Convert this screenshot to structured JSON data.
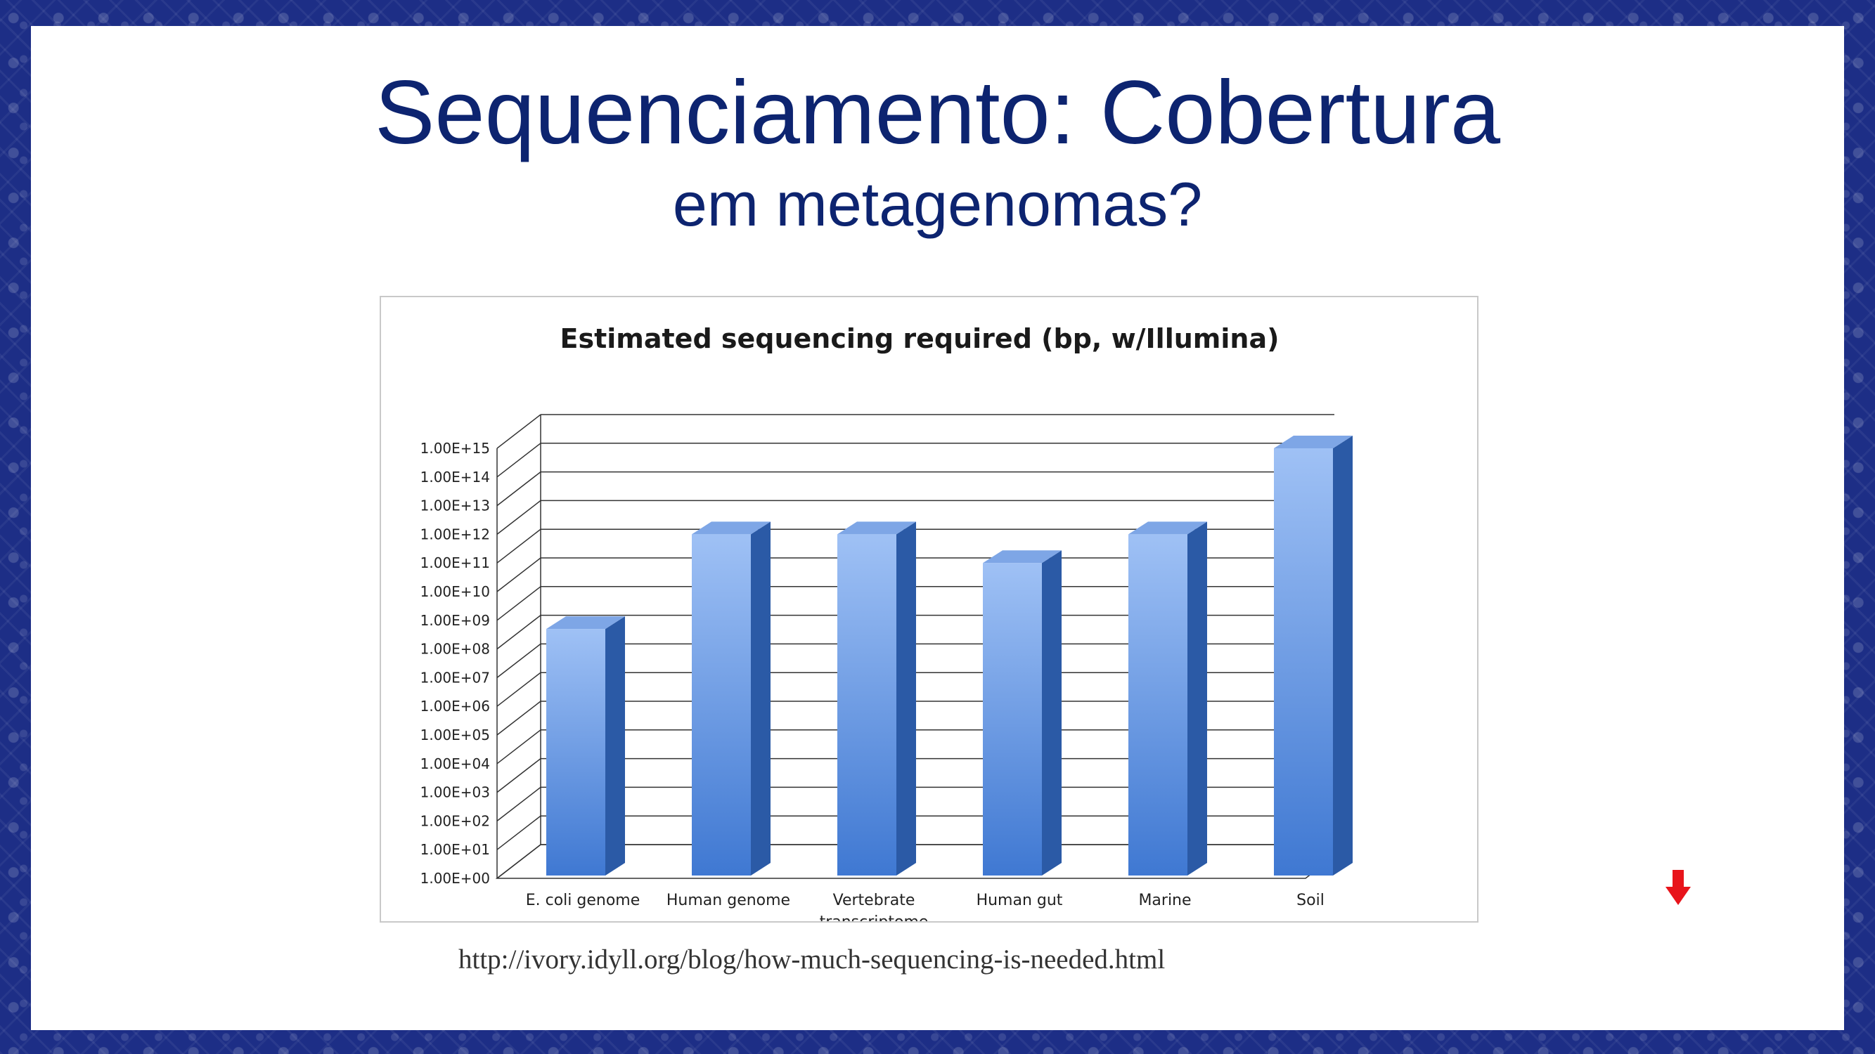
{
  "slide": {
    "title": "Sequenciamento: Cobertura",
    "subtitle": "em metagenomas?",
    "source": "http://ivory.idyll.org/blog/how-much-sequencing-is-needed.html"
  },
  "colors": {
    "title": "#0d2470",
    "bar_light": "#9fc1f5",
    "bar_dark": "#3f78d2",
    "bar_side": "#2b5aa6",
    "arrow": "#e8141b"
  },
  "icons": {
    "down_arrow": "down-arrow-icon"
  },
  "chart_data": {
    "type": "bar",
    "title": "Estimated sequencing required (bp, w/Illumina)",
    "xlabel": "",
    "ylabel": "",
    "y_scale": "log10",
    "ylim": [
      1,
      1000000000000000.0
    ],
    "yticks": [
      "1.00E+00",
      "1.00E+01",
      "1.00E+02",
      "1.00E+03",
      "1.00E+04",
      "1.00E+05",
      "1.00E+06",
      "1.00E+07",
      "1.00E+08",
      "1.00E+09",
      "1.00E+10",
      "1.00E+11",
      "1.00E+12",
      "1.00E+13",
      "1.00E+14",
      "1.00E+15"
    ],
    "categories": [
      [
        "E. coli genome"
      ],
      [
        "Human genome"
      ],
      [
        "Vertebrate",
        "transcriptome"
      ],
      [
        "Human gut"
      ],
      [
        "Marine"
      ],
      [
        "Soil"
      ]
    ],
    "values": [
      500000000.0,
      1000000000000.0,
      1000000000000.0,
      100000000000.0,
      1000000000000.0,
      1000000000000000.0
    ],
    "grid": true,
    "style": "3d"
  }
}
